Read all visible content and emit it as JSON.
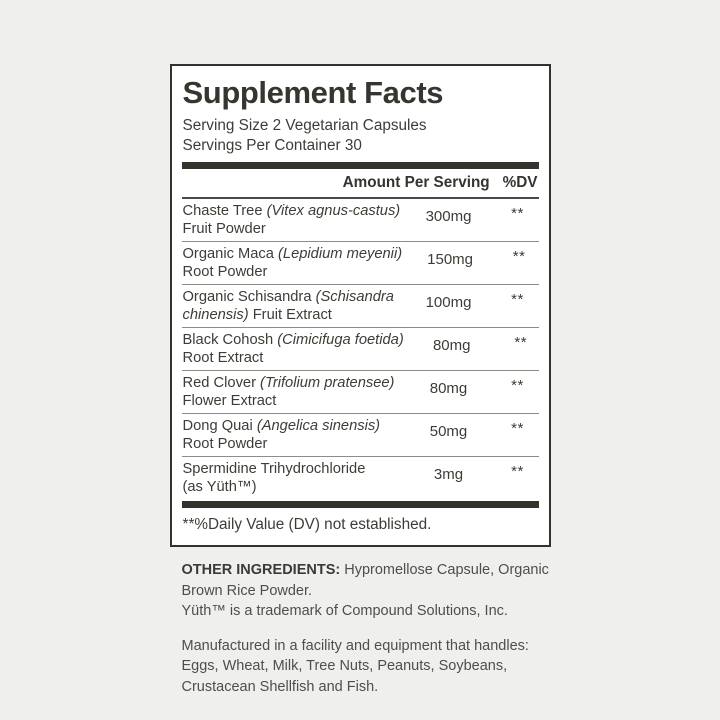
{
  "panel": {
    "title": "Supplement Facts",
    "serving_size": "Serving Size 2 Vegetarian Capsules",
    "servings_per_container": "Servings Per Container 30",
    "amount_header": "Amount Per Serving",
    "dv_header": "%DV",
    "footnote": "**%Daily Value (DV) not established.",
    "rows": [
      {
        "line1": [
          {
            "text": "Chaste Tree ",
            "italic": false
          },
          {
            "text": "(Vitex agnus-castus)",
            "italic": true
          }
        ],
        "line2": [
          {
            "text": "Fruit Powder",
            "italic": false
          }
        ],
        "amount": "300mg",
        "dv": "**"
      },
      {
        "line1": [
          {
            "text": "Organic Maca ",
            "italic": false
          },
          {
            "text": "(Lepidium meyenii)",
            "italic": true
          }
        ],
        "line2": [
          {
            "text": "Root Powder",
            "italic": false
          }
        ],
        "amount": "150mg",
        "dv": "**"
      },
      {
        "line1": [
          {
            "text": "Organic Schisandra ",
            "italic": false
          },
          {
            "text": "(Schisandra",
            "italic": true
          }
        ],
        "line2": [
          {
            "text": "chinensis)",
            "italic": true
          },
          {
            "text": " Fruit Extract",
            "italic": false
          }
        ],
        "amount": "100mg",
        "dv": "**"
      },
      {
        "line1": [
          {
            "text": "Black Cohosh ",
            "italic": false
          },
          {
            "text": "(Cimicifuga foetida)",
            "italic": true
          }
        ],
        "line2": [
          {
            "text": "Root Extract",
            "italic": false
          }
        ],
        "amount": "80mg",
        "dv": "**"
      },
      {
        "line1": [
          {
            "text": "Red Clover ",
            "italic": false
          },
          {
            "text": "(Trifolium pratensee)",
            "italic": true
          }
        ],
        "line2": [
          {
            "text": "Flower Extract",
            "italic": false
          }
        ],
        "amount": "80mg",
        "dv": "**"
      },
      {
        "line1": [
          {
            "text": "Dong Quai ",
            "italic": false
          },
          {
            "text": "(Angelica sinensis)",
            "italic": true
          }
        ],
        "line2": [
          {
            "text": "Root Powder",
            "italic": false
          }
        ],
        "amount": "50mg",
        "dv": "**"
      },
      {
        "line1": [
          {
            "text": "Spermidine Trihydrochloride",
            "italic": false
          }
        ],
        "line2": [
          {
            "text": "(as Yüth™)",
            "italic": false
          }
        ],
        "amount": "3mg",
        "dv": "**"
      }
    ]
  },
  "footer": {
    "other_ingredients_label": "OTHER INGREDIENTS:",
    "other_ingredients_text": " Hypromellose Capsule, Organic\nBrown Rice Powder.\nYüth™ is a trademark of Compound Solutions, Inc.",
    "allergen_text": "Manufactured in a facility and equipment that handles:\nEggs, Wheat, Milk, Tree Nuts, Peanuts, Soybeans,\nCrustacean Shellfish and Fish."
  },
  "colors": {
    "page_background": "#eff0ee",
    "panel_background": "#ffffff",
    "panel_border": "#33332d",
    "ink": "#3b3b35",
    "body_text": "#4e4e4a",
    "row_rule": "#8d8d88"
  }
}
